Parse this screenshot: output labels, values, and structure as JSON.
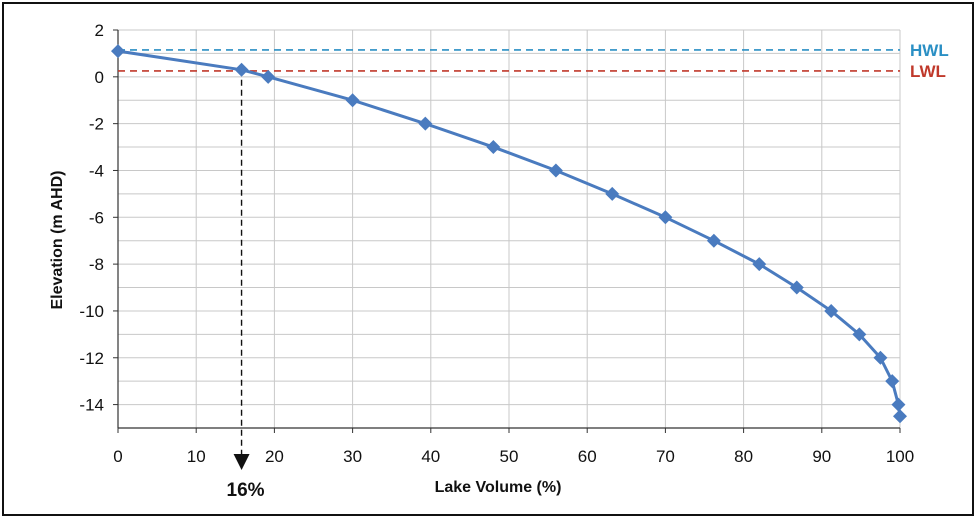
{
  "chart_data": {
    "type": "line",
    "xlabel": "Lake Volume (%)",
    "ylabel": "Elevation (m AHD)",
    "xlim": [
      0,
      100
    ],
    "ylim": [
      -15,
      2
    ],
    "x_ticks": [
      0,
      10,
      20,
      30,
      40,
      50,
      60,
      70,
      80,
      90,
      100
    ],
    "y_ticks": [
      2,
      0,
      -2,
      -4,
      -6,
      -8,
      -10,
      -12,
      -14
    ],
    "x_tick_labels": [
      "0",
      "10",
      "20",
      "30",
      "40",
      "50",
      "60",
      "70",
      "80",
      "90",
      "100"
    ],
    "y_tick_labels": [
      "2",
      "0",
      "-2",
      "-4",
      "-6",
      "-8",
      "-10",
      "-12",
      "-14"
    ],
    "grid": true,
    "series": [
      {
        "color": "#4a7bbf",
        "marker": "diamond",
        "x": [
          0,
          15.8,
          19.2,
          30,
          39.3,
          48,
          56,
          63.2,
          70,
          76.2,
          82,
          86.8,
          91.2,
          94.8,
          97.5,
          99,
          99.8,
          100
        ],
        "y": [
          1.1,
          0.3,
          0,
          -1,
          -2,
          -3,
          -4,
          -5,
          -6,
          -7,
          -8,
          -9,
          -10,
          -11,
          -12,
          -13,
          -14,
          -14.5
        ]
      }
    ],
    "reference_lines": [
      {
        "label": "HWL",
        "y": 1.15,
        "color": "#2a8fc4",
        "style": "dashed"
      },
      {
        "label": "LWL",
        "y": 0.25,
        "color": "#c0392b",
        "style": "dashed"
      }
    ],
    "annotation": {
      "label": "16%",
      "x": 15.8,
      "y_from": 0.3,
      "style": "dashed-arrow-down"
    }
  }
}
